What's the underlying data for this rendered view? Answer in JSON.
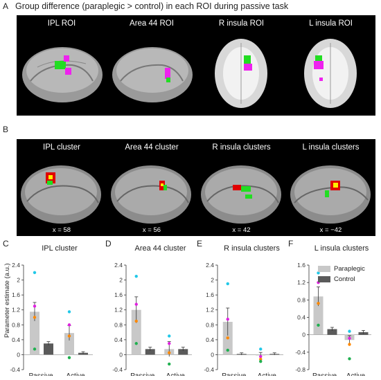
{
  "sectionA": {
    "label": "A",
    "title": "Group difference (paraplegic > control) in each ROI during passive task",
    "panels": [
      {
        "title": "IPL ROI"
      },
      {
        "title": "Area 44 ROI"
      },
      {
        "title": "R insula ROI"
      },
      {
        "title": "L insula ROI"
      }
    ]
  },
  "sectionB": {
    "label": "B",
    "panels": [
      {
        "title": "IPL cluster",
        "x": "x = 58"
      },
      {
        "title": "Area 44 cluster",
        "x": "x = 56"
      },
      {
        "title": "R insula clusters",
        "x": "x = 42"
      },
      {
        "title": "L insula clusters",
        "x": "x = −42"
      }
    ]
  },
  "colors": {
    "paraplegic": "#c8c8c8",
    "control": "#5a5a5a",
    "roi_green": "#22dd22",
    "roi_magenta": "#ee22ee",
    "dots": [
      "#ff8800",
      "#e020e0",
      "#20c8e8",
      "#20b050"
    ]
  },
  "legend": {
    "paraplegic": "Paraplegic",
    "control": "Control"
  },
  "ylabel": "Parameter estimate (a.u.)",
  "chart_data": [
    {
      "label": "C",
      "title": "IPL cluster",
      "type": "bar",
      "categories": [
        "Passive",
        "Active"
      ],
      "ylim": [
        -0.4,
        2.4
      ],
      "yticks": [
        "-0.4",
        "0",
        "0.4",
        "0.8",
        "1.2",
        "1.6",
        "2",
        "2.4"
      ],
      "series": [
        {
          "name": "Paraplegic",
          "values": [
            1.15,
            0.58
          ],
          "err": [
            0.25,
            0.2
          ]
        },
        {
          "name": "Control",
          "values": [
            0.3,
            0.05
          ],
          "err": [
            0.05,
            0.03
          ]
        }
      ],
      "points": [
        {
          "x": "Passive",
          "y": [
            2.2,
            1.3,
            1.0,
            0.15
          ]
        },
        {
          "x": "Active",
          "y": [
            1.15,
            0.8,
            0.5,
            -0.08
          ]
        }
      ]
    },
    {
      "label": "D",
      "title": "Area 44 cluster",
      "type": "bar",
      "categories": [
        "Passive",
        "Active"
      ],
      "ylim": [
        -0.4,
        2.4
      ],
      "yticks": [
        "-0.4",
        "0",
        "0.4",
        "0.8",
        "1.2",
        "1.6",
        "2",
        "2.4"
      ],
      "series": [
        {
          "name": "Paraplegic",
          "values": [
            1.2,
            0.15
          ],
          "err": [
            0.35,
            0.2
          ]
        },
        {
          "name": "Control",
          "values": [
            0.15,
            0.15
          ],
          "err": [
            0.05,
            0.05
          ]
        }
      ],
      "points": [
        {
          "x": "Passive",
          "y": [
            2.1,
            1.35,
            0.9,
            0.3
          ]
        },
        {
          "x": "Active",
          "y": [
            0.5,
            0.3,
            0.05,
            -0.25
          ]
        }
      ]
    },
    {
      "label": "E",
      "title": "R insula clusters",
      "type": "bar",
      "categories": [
        "Passive",
        "Active"
      ],
      "ylim": [
        -0.4,
        2.4
      ],
      "yticks": [
        "-0.4",
        "0",
        "0.4",
        "0.8",
        "1.2",
        "1.6",
        "2",
        "2.4"
      ],
      "series": [
        {
          "name": "Paraplegic",
          "values": [
            0.88,
            -0.02
          ],
          "err": [
            0.37,
            0.08
          ]
        },
        {
          "name": "Control",
          "values": [
            0.02,
            0.02
          ],
          "err": [
            0.03,
            0.03
          ]
        }
      ],
      "points": [
        {
          "x": "Passive",
          "y": [
            1.9,
            0.95,
            0.45,
            0.12
          ]
        },
        {
          "x": "Active",
          "y": [
            0.15,
            -0.05,
            -0.12,
            -0.18
          ]
        }
      ]
    },
    {
      "label": "F",
      "title": "L insula clusters",
      "type": "bar",
      "categories": [
        "Passive",
        "Active"
      ],
      "ylim": [
        -0.8,
        1.6
      ],
      "yticks": [
        "-0.8",
        "-0.4",
        "0",
        "0.4",
        "0.8",
        "1.2",
        "1.6"
      ],
      "series": [
        {
          "name": "Paraplegic",
          "values": [
            0.88,
            -0.12
          ],
          "err": [
            0.22,
            0.1
          ]
        },
        {
          "name": "Control",
          "values": [
            0.13,
            0.06
          ],
          "err": [
            0.04,
            0.04
          ]
        }
      ],
      "points": [
        {
          "x": "Passive",
          "y": [
            1.42,
            1.2,
            0.72,
            0.22
          ]
        },
        {
          "x": "Active",
          "y": [
            0.08,
            -0.08,
            -0.22,
            -0.55
          ]
        }
      ]
    }
  ]
}
